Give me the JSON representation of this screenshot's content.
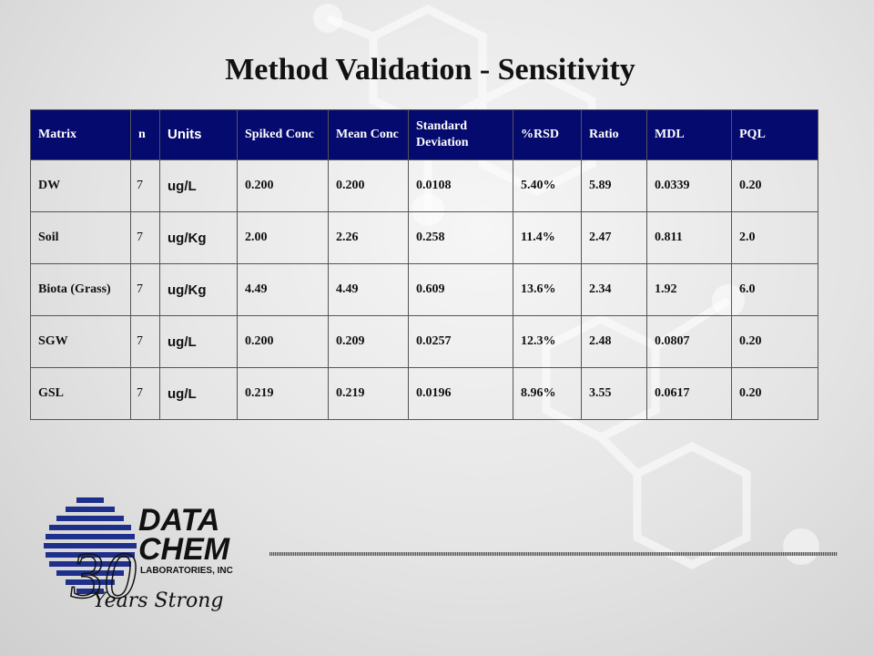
{
  "title": "Method Validation - Sensitivity",
  "table": {
    "headers": [
      "Matrix",
      "n",
      "Units",
      "Spiked Conc",
      "Mean Conc",
      "Standard Deviation",
      "%RSD",
      "Ratio",
      "MDL",
      "PQL"
    ],
    "rows": [
      [
        "DW",
        "7",
        "ug/L",
        "0.200",
        "0.200",
        "0.0108",
        "5.40%",
        "5.89",
        "0.0339",
        "0.20"
      ],
      [
        "Soil",
        "7",
        "ug/Kg",
        "2.00",
        "2.26",
        "0.258",
        "11.4%",
        "2.47",
        "0.811",
        "2.0"
      ],
      [
        "Biota (Grass)",
        "7",
        "ug/Kg",
        "4.49",
        "4.49",
        "0.609",
        "13.6%",
        "2.34",
        "1.92",
        "6.0"
      ],
      [
        "SGW",
        "7",
        "ug/L",
        "0.200",
        "0.209",
        "0.0257",
        "12.3%",
        "2.48",
        "0.0807",
        "0.20"
      ],
      [
        "GSL",
        "7",
        "ug/L",
        "0.219",
        "0.219",
        "0.0196",
        "8.96%",
        "3.55",
        "0.0617",
        "0.20"
      ]
    ]
  },
  "logo": {
    "line1": "DATA",
    "line2": "CHEM",
    "line3": "LABORATORIES, INC",
    "number": "30",
    "tagline": "Years Strong"
  },
  "colors": {
    "header_bg": "#050a6e",
    "logo_blue": "#1f2f8c"
  }
}
